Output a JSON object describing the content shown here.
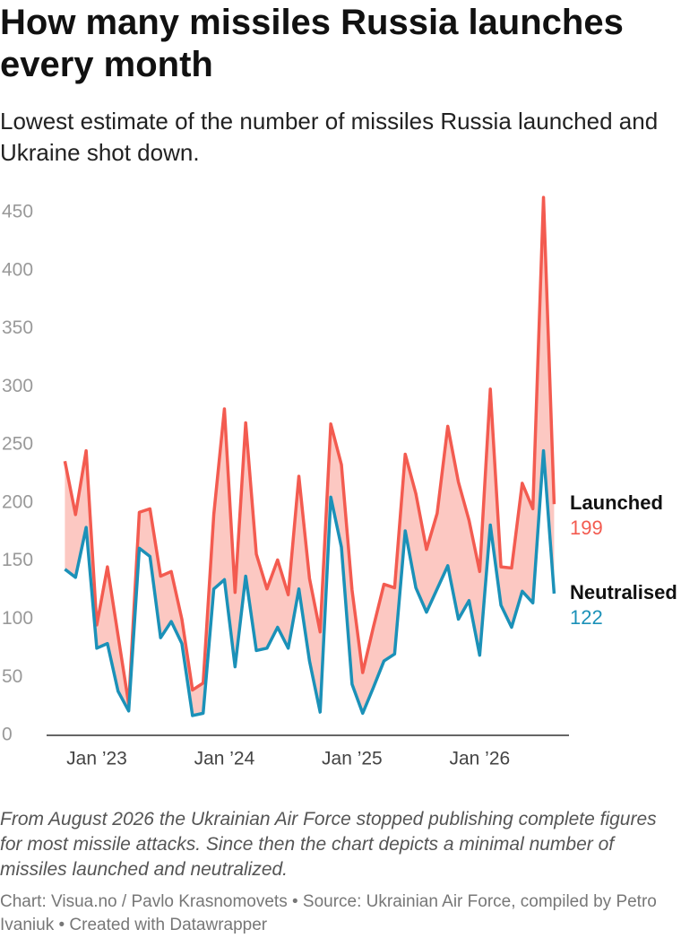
{
  "chart_data": {
    "type": "line",
    "title": "How many missiles Russia launches every month",
    "subtitle": "Lowest estimate of the number of missiles Russia launched and Ukraine shot down.",
    "notes": "From August 2026 the Ukrainian Air Force stopped publishing complete figures for most missile attacks. Since then the chart depicts a minimal number of missiles launched and neutralized.",
    "source": "Chart: Visua.no / Pavlo Krasnomovets • Source: Ukrainian Air Force, compiled by Petro Ivaniuk • Created with Datawrapper",
    "categories": [
      null,
      null,
      null,
      "Jan ’23",
      null,
      null,
      null,
      null,
      null,
      null,
      null,
      null,
      null,
      null,
      null,
      "Jan ’24",
      null,
      null,
      null,
      null,
      null,
      null,
      null,
      null,
      null,
      null,
      null,
      "Jan ’25",
      null,
      null,
      null,
      null,
      null,
      null,
      null,
      null,
      null,
      null,
      null,
      "Jan ’26",
      null,
      null,
      null,
      null,
      null,
      null,
      null
    ],
    "series": [
      {
        "name": "Launched",
        "color": "#f35b50",
        "values": [
          236,
          190,
          245,
          95,
          145,
          86,
          27,
          192,
          195,
          137,
          141,
          100,
          39,
          45,
          190,
          281,
          123,
          269,
          156,
          126,
          151,
          121,
          223,
          135,
          89,
          268,
          233,
          125,
          54,
          93,
          130,
          127,
          242,
          208,
          160,
          191,
          266,
          218,
          185,
          141,
          298,
          145,
          144,
          217,
          195,
          463,
          199
        ]
      },
      {
        "name": "Neutralised",
        "color": "#1b91b8",
        "values": [
          143,
          136,
          179,
          75,
          79,
          38,
          21,
          161,
          154,
          84,
          98,
          79,
          17,
          19,
          126,
          134,
          59,
          137,
          73,
          75,
          93,
          75,
          126,
          64,
          20,
          205,
          162,
          44,
          19,
          41,
          64,
          70,
          176,
          127,
          106,
          126,
          146,
          100,
          116,
          69,
          181,
          112,
          93,
          124,
          114,
          245,
          122
        ]
      }
    ],
    "area_color": "#fcc8c2",
    "ylim": [
      0,
      450
    ],
    "yticks": [
      0,
      50,
      100,
      150,
      200,
      250,
      300,
      350,
      400,
      450
    ],
    "grid": false
  }
}
